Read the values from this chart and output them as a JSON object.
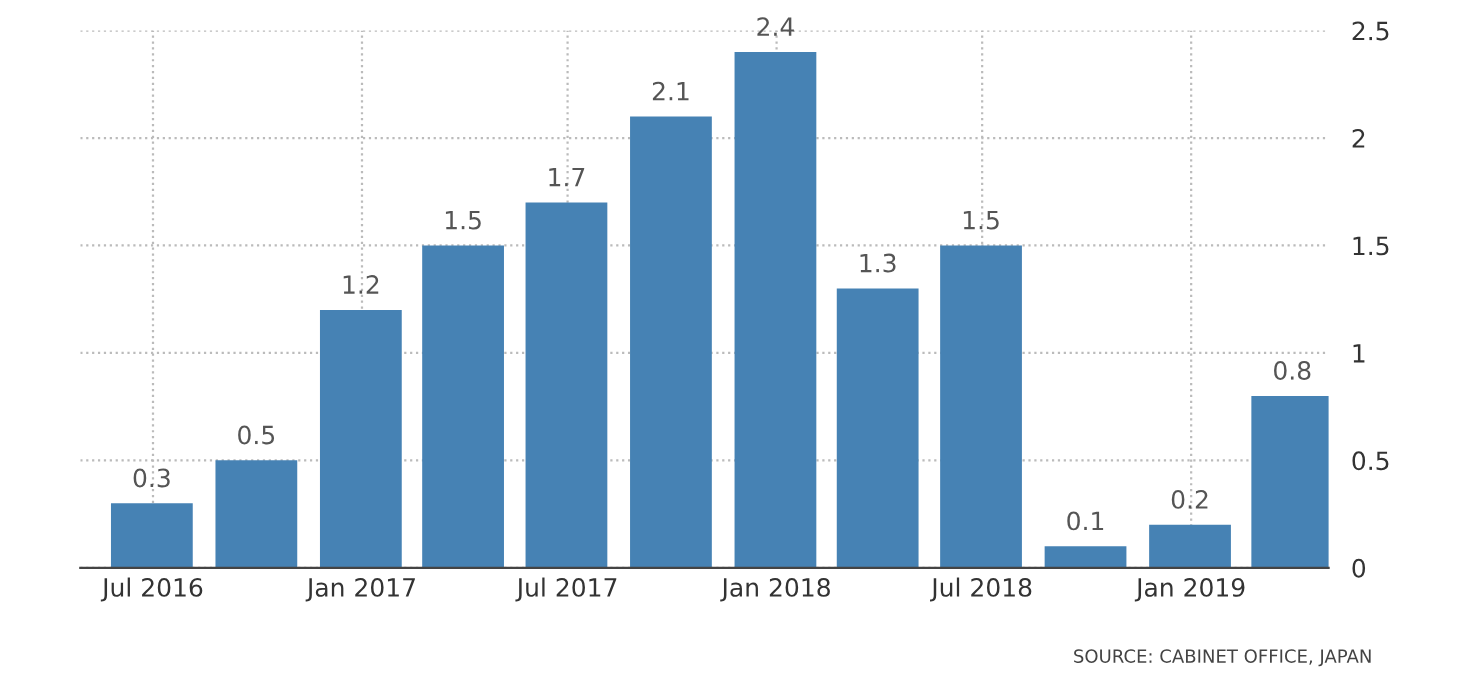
{
  "chart_data": {
    "type": "bar",
    "x": [
      "2016-06-30",
      "2016-09-30",
      "2016-12-31",
      "2017-03-31",
      "2017-06-30",
      "2017-09-30",
      "2017-12-31",
      "2018-03-31",
      "2018-06-30",
      "2018-09-30",
      "2018-12-31",
      "2019-03-31"
    ],
    "values": [
      0.3,
      0.5,
      1.2,
      1.5,
      1.7,
      2.1,
      2.4,
      1.3,
      1.5,
      0.1,
      0.2,
      0.8
    ],
    "color": "#4682b4",
    "data_labels": true,
    "xlim": [
      "2016-04-28",
      "2019-05-02"
    ],
    "xticks": [
      {
        "value": "2016-07-01",
        "label": "Jul 2016"
      },
      {
        "value": "2017-01-01",
        "label": "Jan 2017"
      },
      {
        "value": "2017-07-01",
        "label": "Jul 2017"
      },
      {
        "value": "2018-01-01",
        "label": "Jan 2018"
      },
      {
        "value": "2018-07-01",
        "label": "Jul 2018"
      },
      {
        "value": "2019-01-01",
        "label": "Jan 2019"
      }
    ],
    "ylim": [
      0,
      2.5
    ],
    "yticks": [
      0,
      0.5,
      1,
      1.5,
      2,
      2.5
    ],
    "grid": true,
    "annotations": [
      "SOURCE: CABINET OFFICE, JAPAN"
    ]
  }
}
